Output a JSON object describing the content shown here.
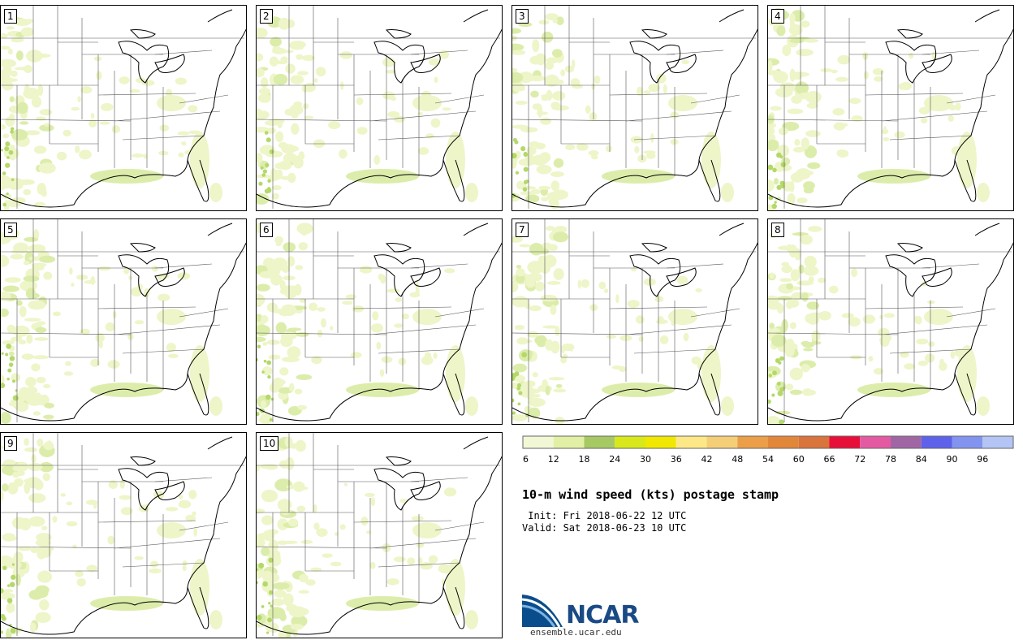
{
  "panels": [
    {
      "label": "1"
    },
    {
      "label": "2"
    },
    {
      "label": "3"
    },
    {
      "label": "4"
    },
    {
      "label": "5"
    },
    {
      "label": "6"
    },
    {
      "label": "7"
    },
    {
      "label": "8"
    },
    {
      "label": "9"
    },
    {
      "label": "10"
    }
  ],
  "title": "10-m wind speed (kts) postage stamp",
  "init": " Init: Fri 2018-06-22 12 UTC",
  "valid": "Valid: Sat 2018-06-23 10 UTC",
  "colorbar": {
    "ticks": [
      "6",
      "12",
      "18",
      "24",
      "30",
      "36",
      "42",
      "48",
      "54",
      "60",
      "66",
      "72",
      "78",
      "84",
      "90",
      "96"
    ],
    "colors": [
      "#f2f7d6",
      "#e2f0a6",
      "#a6c964",
      "#d8e81a",
      "#f0e800",
      "#fde888",
      "#f4cf78",
      "#ec9e48",
      "#e2863a",
      "#d8743c",
      "#e80e3a",
      "#e45aa2",
      "#a066a4",
      "#5e62ea",
      "#8294f0",
      "#b4c4f4"
    ]
  },
  "wind_shading_colors": {
    "light": "#eef5c8",
    "medium": "#dcedab",
    "strong": "#b4d96a"
  },
  "logo": {
    "text": "NCAR",
    "url": "ensemble.ucar.edu"
  }
}
